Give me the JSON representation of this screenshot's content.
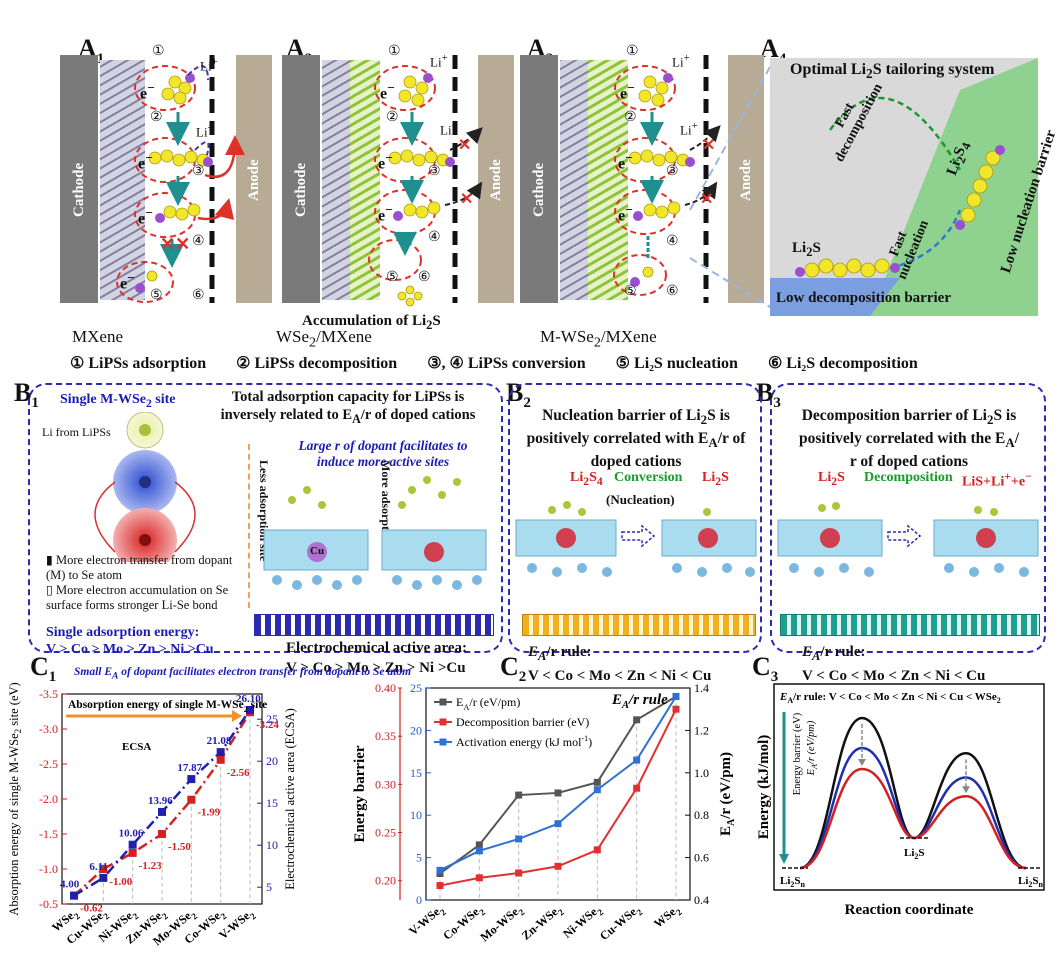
{
  "panelA": {
    "labels": {
      "a1": "A",
      "a2": "A",
      "a3": "A",
      "a4": "A",
      "s1": "1",
      "s2": "2",
      "s3": "3",
      "s4": "4"
    },
    "cathode": "Cathode",
    "anode": "Anode",
    "li_ion": "Li",
    "electron": "e",
    "steps": [
      "①",
      "②",
      "③",
      "④",
      "⑤",
      "⑥"
    ],
    "captions": {
      "a1": "MXene",
      "a2_main": "WSe",
      "a2_tail": "/MXene",
      "a3_main": "M-WSe",
      "a3_tail": "/MXene",
      "accumulation": "Accumulation of Li",
      "accumulation_tail": "S"
    },
    "a4": {
      "title": "Optimal Li",
      "title_tail": "S tailoring system",
      "fast_decomposition_1": "Fast",
      "fast_decomposition_2": "decomposition",
      "fast_nucleation_1": "Fast",
      "fast_nucleation_2": "nucleation",
      "low_nucleation_barrier": "Low nucleation barrier",
      "low_decomposition_barrier": "Low decomposition barrier",
      "li2s": "Li",
      "li2s_tail": "S",
      "li2s4": "Li",
      "li2s4_tail": "S"
    },
    "legend": [
      "① LiPSs adsorption",
      "② LiPSs decomposition",
      "③, ④ LiPSs conversion",
      "⑤ Li₂S nucleation",
      "⑥ Li₂S decomposition"
    ],
    "colors": {
      "cathode": "#7a7a7a",
      "anode": "#b8ab96",
      "red_dash": "#e0302a",
      "blue_dash": "#3a3ab8",
      "teal": "#1f8f8f",
      "yellow": "#f2e62a",
      "purple": "#9a4fd0",
      "a4_gray": "#d9d9d9",
      "a4_blue": "#7a9ee0",
      "a4_green": "#8fd28f"
    }
  },
  "panelB": {
    "labels": {
      "b1": "B",
      "b2": "B",
      "b3": "B",
      "s1": "1",
      "s2": "2",
      "s3": "3"
    },
    "b1": {
      "single_site": "Single M-WSe",
      "single_site_tail": " site",
      "total_title_1": "Total  adsorption capacity for LiPSs is",
      "total_title_2": "inversely related to E",
      "total_title_3": "/r of doped cations",
      "li_from": "Li from LiPSs",
      "large_r_1": "Large r of dopant facilitates to",
      "large_r_2": "induce more active sites",
      "less_site": "Less adsorption site",
      "more_site": "More adsorption site",
      "note1": "More electron transfer from dopant (M) to Se atom",
      "note2": "More electron accumulation on Se surface forms  stronger Li-Se bond",
      "single_energy": "Single adsorption energy:",
      "single_order": "V > Co > Mo > Zn > Ni  >Cu",
      "ecsa_title": "Electrochemical active area:",
      "ecsa_order": "V > Co > Mo > Zn > Ni >Cu",
      "atom_cu": "Cu",
      "small_ea": "Small E",
      "small_ea_tail": " of dopant facilitates electron transfer from dopant to Se atom"
    },
    "b2": {
      "title_1": "Nucleation barrier of Li",
      "title_1_tail": "S is",
      "title_2": "positively correlated with E",
      "title_2_tail": "/r of",
      "title_3": "doped cations",
      "reactant": "Li",
      "reactant_tail": "S",
      "reactant_sub": "4",
      "conversion": "Conversion",
      "nucleation": "(Nucleation)",
      "product": "Li",
      "product_tail": "S",
      "rule_label": "/r rule:",
      "rule": "V < Co < Mo < Zn < Ni  < Cu"
    },
    "b3": {
      "title_1": "Decomposition barrier of Li",
      "title_1_tail": "S is",
      "title_2": "positively correlated with the E",
      "title_2_tail": "/",
      "title_3": "r of doped cations",
      "reactant": "Li",
      "reactant_tail": "S",
      "decomposition": "Decomposition",
      "product": "LiS+Li",
      "product_tail": "+e",
      "rule_label": "/r rule:",
      "rule": "V < Co < Mo < Zn < Ni  < Cu"
    }
  },
  "chart_data": [
    {
      "id": "C1",
      "type": "line",
      "categories": [
        "WSe2",
        "Cu-WSe2",
        "Ni-WSe2",
        "Zn-WSe2",
        "Mo-WSe2",
        "Co-WSe2",
        "V-WSe2"
      ],
      "category_labels": [
        "WSe",
        "Cu-WSe",
        "Ni-WSe",
        "Zn-WSe",
        "Mo-WSe",
        "Co-WSe",
        "V-WSe"
      ],
      "series": [
        {
          "name": "Absorption energy of single M-WSe2 site",
          "axis": "left",
          "color": "#d42020",
          "values": [
            -0.62,
            -1.0,
            -1.23,
            -1.5,
            -1.99,
            -2.56,
            -3.24
          ]
        },
        {
          "name": "ECSA",
          "axis": "right",
          "color": "#2020b0",
          "values": [
            4.0,
            6.11,
            10.06,
            13.96,
            17.87,
            21.08,
            26.1
          ]
        }
      ],
      "value_labels_left": [
        "-0.62",
        "-1.00",
        "-1.23",
        "-1.50",
        "-1.99",
        "-2.56",
        "-3.24"
      ],
      "value_labels_right": [
        "4.00",
        "6.11",
        "10.06",
        "13.96",
        "17.87",
        "21.08",
        "26.10"
      ],
      "ylabel_left": "Absorption energy of single M-WSe",
      "ylabel_left_tail": " site  (eV)",
      "ylabel_right": "Electrochemical active area (ECSA)",
      "ylim_left": [
        -0.5,
        -3.5
      ],
      "ylim_right": [
        3,
        28
      ],
      "yticks_left": [
        "-3.5",
        "-3.0",
        "-2.5",
        "-2.0",
        "-1.5",
        "-1.0",
        "-0.5"
      ],
      "yticks_right": [
        "5",
        "10",
        "15",
        "20",
        "25"
      ],
      "annotation": "Absorption energy of single M-WSe",
      "annotation_tail": " site",
      "ecsa_label": "ECSA"
    },
    {
      "id": "C2",
      "type": "line",
      "categories": [
        "V-WSe2",
        "Co-WSe2",
        "Mo-WSe2",
        "Zn-WSe2",
        "Ni-WSe2",
        "Cu-WSe2",
        "WSe2"
      ],
      "category_labels": [
        "V-WSe",
        "Co-WSe",
        "Mo-WSe",
        "Zn-WSe",
        "Ni-WSe",
        "Cu-WSe",
        "WSe"
      ],
      "series": [
        {
          "name": "EA/r (eV/pm)",
          "axis": "right",
          "color": "#555555",
          "values": [
            0.525,
            0.66,
            0.895,
            0.905,
            0.955,
            1.25,
            1.36
          ]
        },
        {
          "name": "Decomposition barrier (eV)",
          "axis": "left",
          "color": "#e03030",
          "values": [
            0.195,
            0.203,
            0.208,
            0.215,
            0.232,
            0.296,
            0.378
          ]
        },
        {
          "name": "Activation energy (kJ mol-1)",
          "axis": "left2",
          "color": "#3070d0",
          "values": [
            3.5,
            5.8,
            7.2,
            9.0,
            13.0,
            16.5,
            24.0
          ]
        }
      ],
      "legend": [
        "E",
        "/r (eV/pm)",
        "Decomposition barrier (eV)",
        "Activation energy (kJ mol",
        "-1",
        ")"
      ],
      "title": "E",
      "title_tail": "/r rule",
      "ylabel_left": "Energy barrier",
      "ylabel_right": "E",
      "ylabel_right_tail": "/r (eV/pm)",
      "ylim_left": [
        0.18,
        0.4
      ],
      "ylim_left2": [
        0,
        25
      ],
      "ylim_right": [
        0.4,
        1.4
      ],
      "yticks_left": [
        "0.20",
        "0.25",
        "0.30",
        "0.35",
        "0.40"
      ],
      "yticks_left2": [
        "0",
        "5",
        "10",
        "15",
        "20",
        "25"
      ],
      "yticks_right": [
        "0.4",
        "0.6",
        "0.8",
        "1.0",
        "1.2",
        "1.4"
      ]
    },
    {
      "id": "C3",
      "type": "line",
      "title": "E",
      "title_tail": "/r rule:  V < Co < Mo < Zn < Ni < Cu < WSe",
      "xlabel": "Reaction coordinate",
      "ylabel": "Energy (kJ/mol)",
      "inner_label_1": "Energy barrier (eV)",
      "inner_label_2": "E",
      "inner_label_2_tail": "/r (eV/pm)",
      "states": [
        "Li2Sn",
        "Li2S",
        "Li2Sn"
      ],
      "state_labels": [
        "Li",
        "Li",
        "Li"
      ],
      "series": [
        {
          "name": "high",
          "color": "#111111",
          "barrier1": 1.0,
          "barrier2": 0.77
        },
        {
          "name": "mid",
          "color": "#1f2fb0",
          "barrier1": 0.8,
          "barrier2": 0.55
        },
        {
          "name": "low",
          "color": "#d42020",
          "barrier1": 0.66,
          "barrier2": 0.38
        }
      ]
    }
  ]
}
